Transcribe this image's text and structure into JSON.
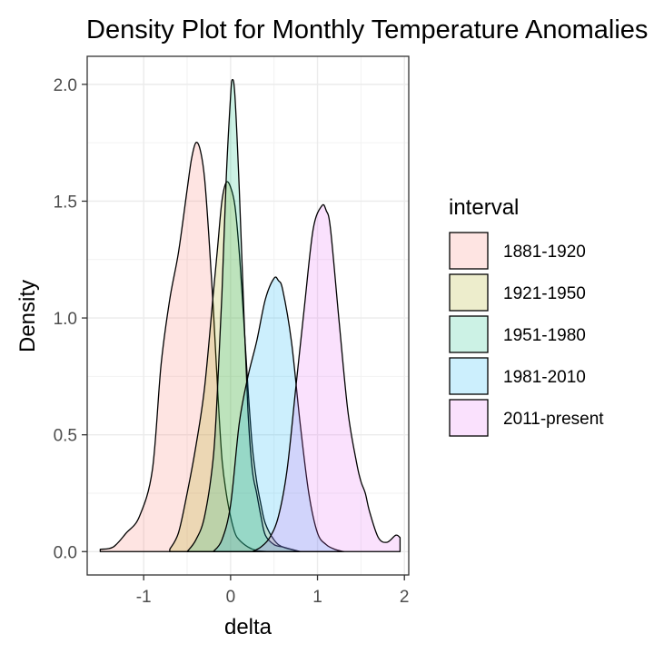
{
  "chart_data": {
    "type": "area",
    "title": "Density Plot for Monthly Temperature Anomalies",
    "xlabel": "delta",
    "ylabel": "Density",
    "xlim": [
      -1.65,
      2.05
    ],
    "ylim": [
      -0.1,
      2.12
    ],
    "x_ticks": [
      -1,
      0,
      1,
      2
    ],
    "y_ticks": [
      0.0,
      0.5,
      1.0,
      1.5,
      2.0
    ],
    "x_tick_labels": [
      "-1",
      "0",
      "1",
      "2"
    ],
    "y_tick_labels": [
      "0.0",
      "0.5",
      "1.0",
      "1.5",
      "2.0"
    ],
    "grid": true,
    "legend": {
      "title": "interval",
      "position": "right"
    },
    "series": [
      {
        "name": "1881-1920",
        "color": "#F8766D",
        "x": [
          -1.5,
          -1.35,
          -1.2,
          -1.05,
          -0.9,
          -0.8,
          -0.7,
          -0.6,
          -0.5,
          -0.45,
          -0.4,
          -0.35,
          -0.3,
          -0.25,
          -0.2,
          -0.15,
          -0.1,
          -0.05,
          0.0,
          0.05,
          0.1,
          0.2,
          0.3,
          0.45
        ],
        "y": [
          0.01,
          0.02,
          0.08,
          0.15,
          0.35,
          0.8,
          1.08,
          1.28,
          1.55,
          1.68,
          1.75,
          1.72,
          1.6,
          1.35,
          1.05,
          0.7,
          0.4,
          0.25,
          0.15,
          0.08,
          0.05,
          0.02,
          0.005,
          0.0
        ]
      },
      {
        "name": "1921-1950",
        "color": "#A3A500",
        "x": [
          -0.7,
          -0.6,
          -0.5,
          -0.4,
          -0.3,
          -0.2,
          -0.15,
          -0.1,
          -0.05,
          0.0,
          0.05,
          0.1,
          0.15,
          0.2,
          0.25,
          0.3,
          0.35,
          0.4,
          0.5,
          0.6,
          0.8
        ],
        "y": [
          0.01,
          0.08,
          0.25,
          0.45,
          0.7,
          1.1,
          1.3,
          1.5,
          1.58,
          1.56,
          1.48,
          1.28,
          1.0,
          0.7,
          0.45,
          0.3,
          0.2,
          0.12,
          0.05,
          0.02,
          0.0
        ]
      },
      {
        "name": "1951-1980",
        "color": "#00BF7D",
        "x": [
          -0.5,
          -0.4,
          -0.3,
          -0.2,
          -0.15,
          -0.1,
          -0.05,
          0.0,
          0.02,
          0.05,
          0.1,
          0.15,
          0.2,
          0.25,
          0.3,
          0.35,
          0.4,
          0.5,
          0.6,
          0.7,
          0.8
        ],
        "y": [
          0.0,
          0.05,
          0.15,
          0.4,
          0.7,
          1.1,
          1.6,
          1.95,
          2.02,
          1.95,
          1.55,
          1.05,
          0.6,
          0.35,
          0.25,
          0.15,
          0.07,
          0.03,
          0.02,
          0.01,
          0.0
        ]
      },
      {
        "name": "1981-2010",
        "color": "#00B0F6",
        "x": [
          -0.2,
          -0.1,
          0.0,
          0.1,
          0.2,
          0.3,
          0.4,
          0.5,
          0.55,
          0.6,
          0.7,
          0.8,
          0.9,
          1.0,
          1.1,
          1.2,
          1.3
        ],
        "y": [
          0.0,
          0.05,
          0.2,
          0.55,
          0.75,
          0.9,
          1.08,
          1.17,
          1.16,
          1.12,
          0.9,
          0.55,
          0.25,
          0.08,
          0.03,
          0.01,
          0.0
        ]
      },
      {
        "name": "2011-present",
        "color": "#E76BF3",
        "x": [
          0.25,
          0.35,
          0.45,
          0.55,
          0.65,
          0.75,
          0.85,
          0.95,
          1.05,
          1.1,
          1.15,
          1.25,
          1.35,
          1.45,
          1.5,
          1.55,
          1.6,
          1.7,
          1.8,
          1.9,
          1.95
        ],
        "y": [
          0.0,
          0.02,
          0.06,
          0.15,
          0.35,
          0.7,
          1.05,
          1.38,
          1.48,
          1.46,
          1.38,
          0.98,
          0.6,
          0.38,
          0.3,
          0.25,
          0.17,
          0.06,
          0.04,
          0.07,
          0.06
        ]
      }
    ]
  }
}
